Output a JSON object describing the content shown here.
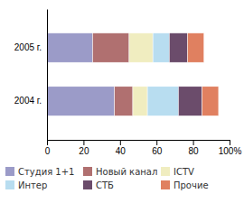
{
  "chart_data": {
    "type": "bar",
    "orientation": "horizontal",
    "stacked": true,
    "categories": [
      "2004 г.",
      "2005 г."
    ],
    "series": [
      {
        "name": "Студия 1+1",
        "color": "#9b9bc8",
        "values": [
          37,
          25
        ]
      },
      {
        "name": "Новый канал",
        "color": "#b07070",
        "values": [
          10,
          20
        ]
      },
      {
        "name": "ICTV",
        "color": "#f0edc0",
        "values": [
          8,
          13
        ]
      },
      {
        "name": "Интер",
        "color": "#b8ddf0",
        "values": [
          17,
          9
        ]
      },
      {
        "name": "СТБ",
        "color": "#6b4c6b",
        "values": [
          13,
          10
        ]
      },
      {
        "name": "Прочие",
        "color": "#e08060",
        "values": [
          9,
          9
        ]
      }
    ],
    "xlim": [
      0,
      100
    ],
    "xticks": [
      0,
      20,
      40,
      60,
      80,
      {
        "value": 100,
        "label": "100%"
      }
    ],
    "grid": false,
    "legend": "bottom"
  }
}
